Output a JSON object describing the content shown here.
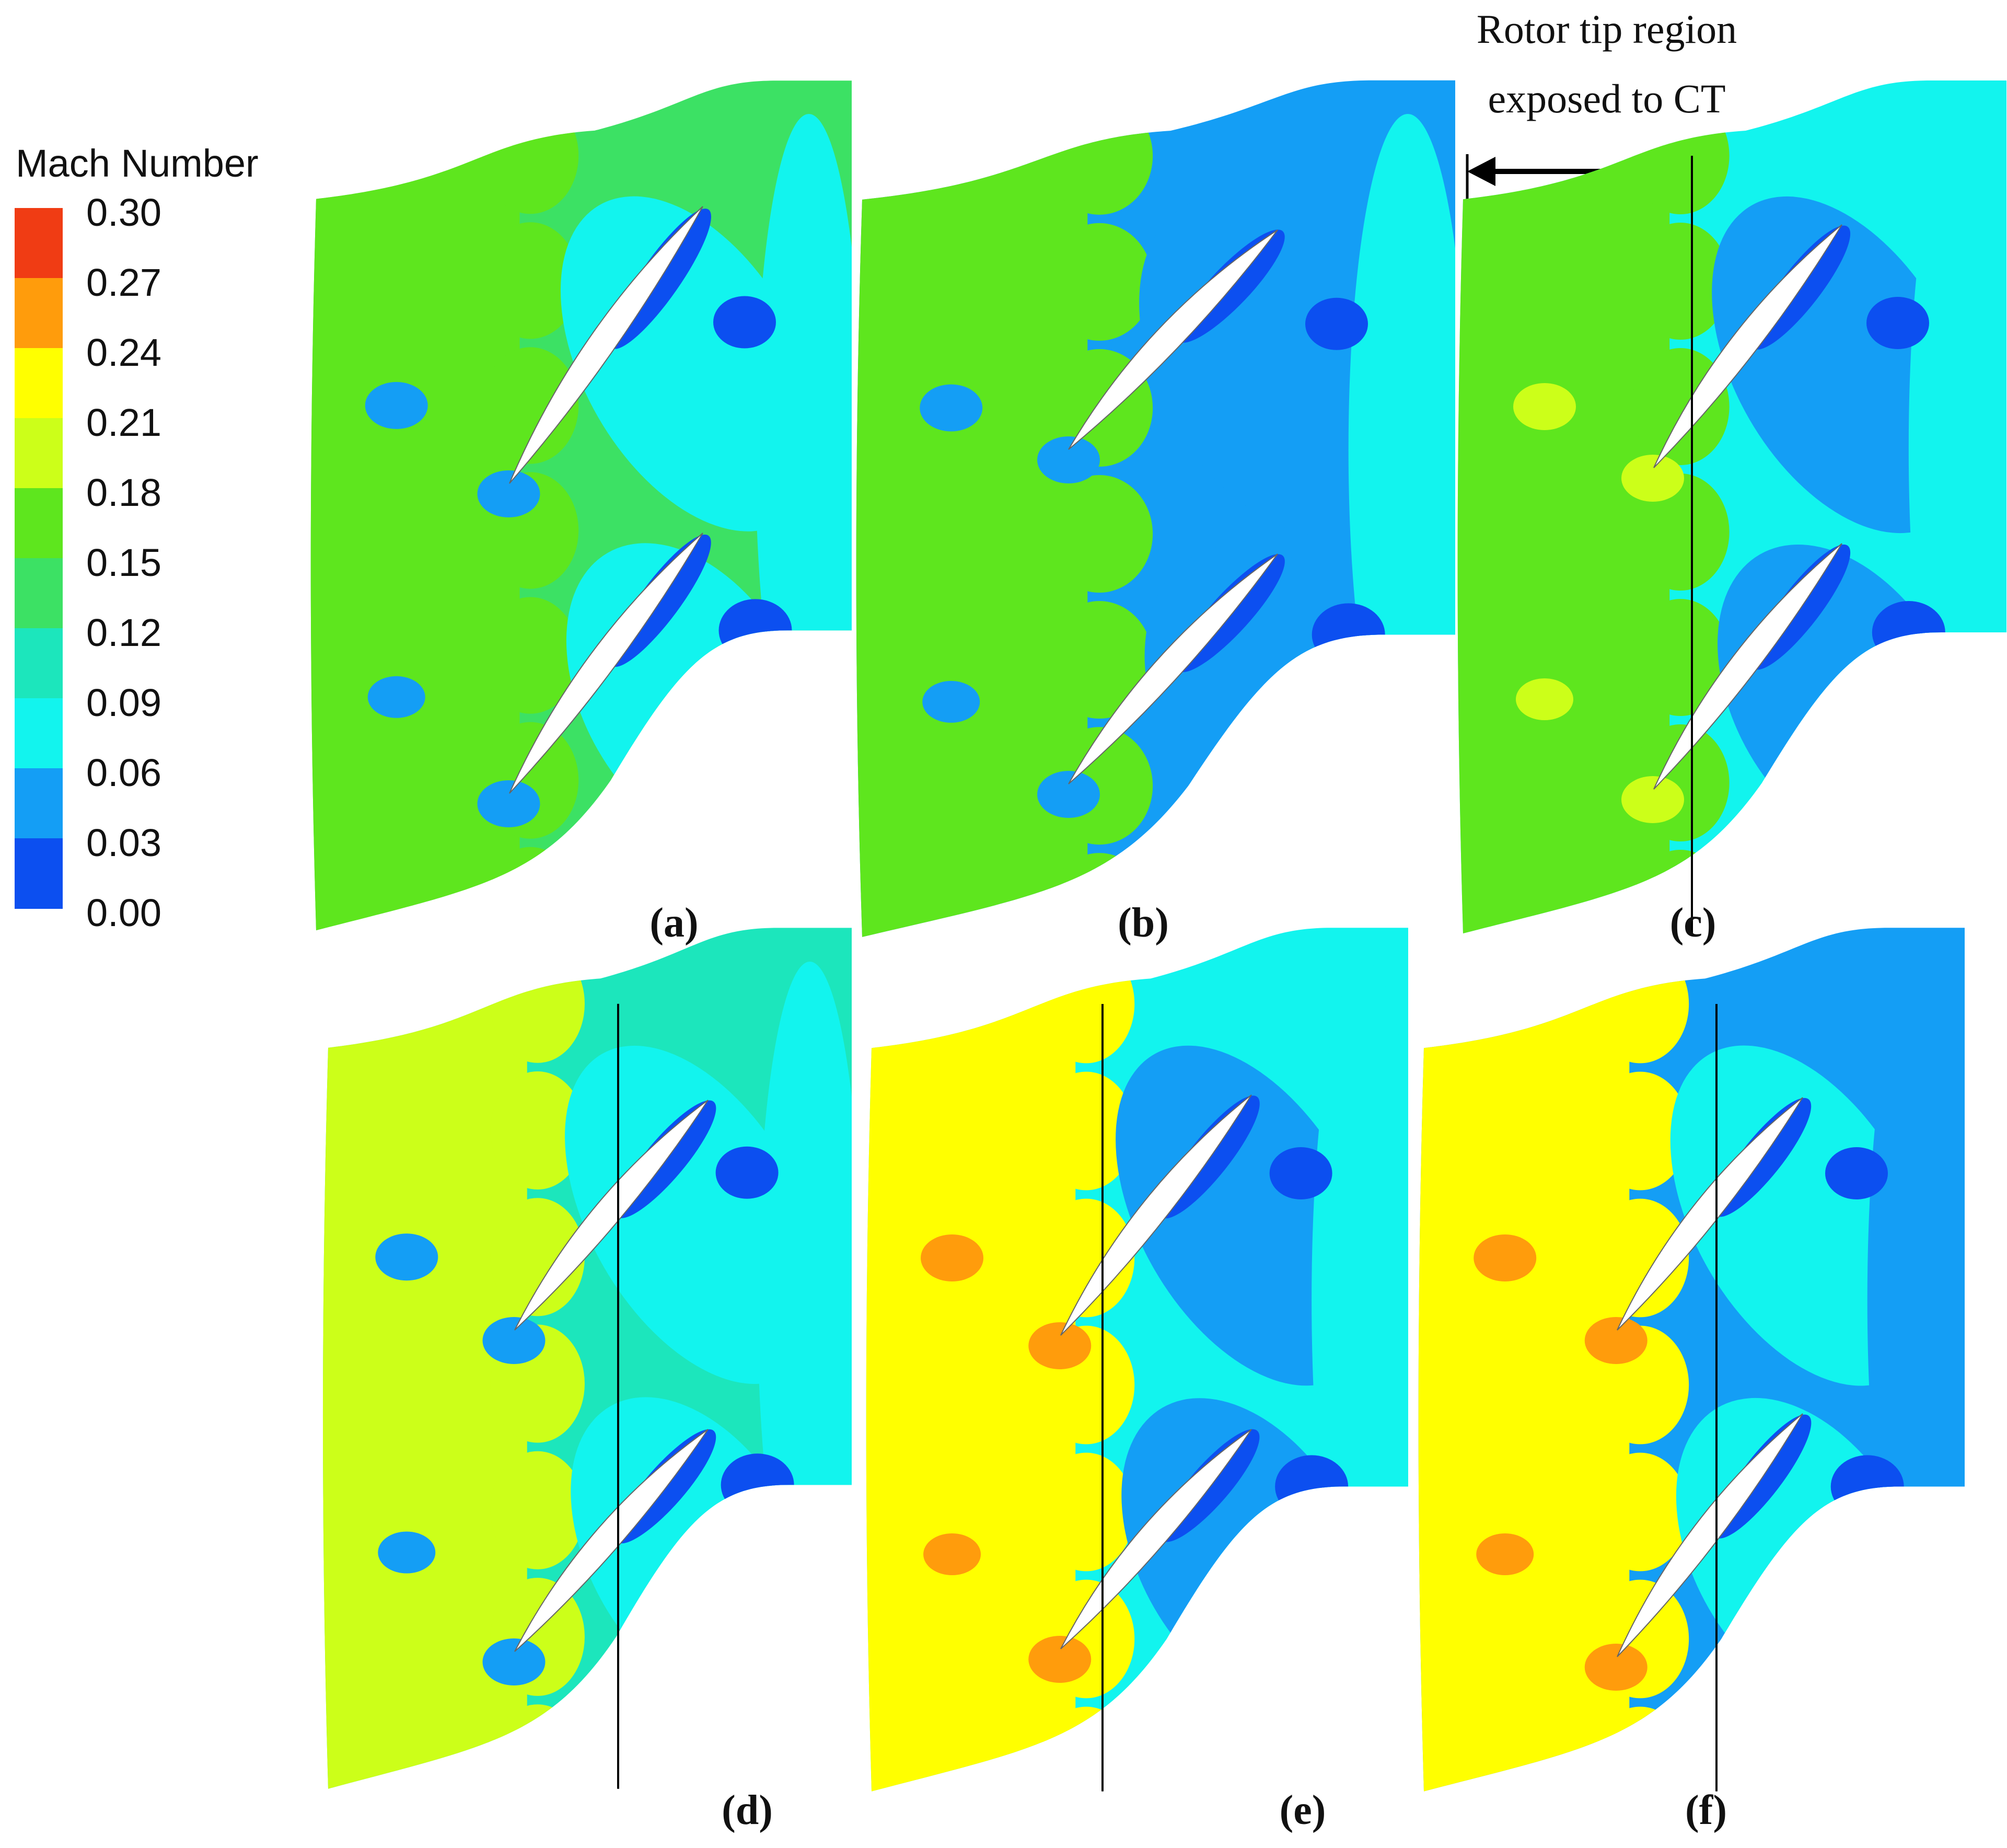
{
  "legend": {
    "title": "Mach Number",
    "ticks": [
      "0.30",
      "0.27",
      "0.24",
      "0.21",
      "0.18",
      "0.15",
      "0.12",
      "0.09",
      "0.06",
      "0.03",
      "0.00"
    ],
    "colors": [
      "#f03c14",
      "#ff9c0c",
      "#ffff00",
      "#ccff19",
      "#5ee61e",
      "#3ce164",
      "#1ce6bc",
      "#12f4ee",
      "#149ef5",
      "#0c4ff0"
    ]
  },
  "annotation": {
    "line1": "Rotor tip region",
    "line2": "exposed to CT"
  },
  "panels": [
    {
      "label": "(a)",
      "level_scale": 0.0
    },
    {
      "label": "(b)",
      "level_scale": 0.0
    },
    {
      "label": "(c)",
      "level_scale": 0.0
    },
    {
      "label": "(d)",
      "level_scale": 0.0
    },
    {
      "label": "(e)",
      "level_scale": 0.0
    },
    {
      "label": "(f)",
      "level_scale": 0.0
    }
  ],
  "colors": {
    "blade": "#ffffff",
    "outline": "#000000"
  }
}
